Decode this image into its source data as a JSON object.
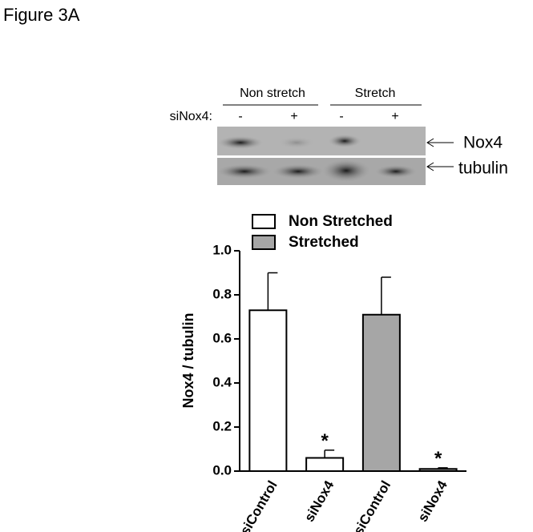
{
  "figure_label": "Figure 3A",
  "blot": {
    "groups": [
      "Non stretch",
      "Stretch"
    ],
    "row_label": "siNox4:",
    "lanes": [
      "-",
      "+",
      "-",
      "+"
    ],
    "bands": [
      "Nox4",
      "tubulin"
    ]
  },
  "chart_data": {
    "type": "bar",
    "categories": [
      "siControl",
      "siNox4",
      "siControl",
      "siNox4"
    ],
    "series": [
      {
        "name": "Non Stretched",
        "color": "#ffffff",
        "values": [
          0.73,
          0.06,
          null,
          null
        ],
        "errors": [
          0.17,
          0.035,
          null,
          null
        ],
        "annotations": [
          null,
          "*",
          null,
          null
        ]
      },
      {
        "name": "Stretched",
        "color": "#a6a6a6",
        "values": [
          null,
          null,
          0.71,
          0.01
        ],
        "errors": [
          null,
          null,
          0.17,
          0.005
        ],
        "annotations": [
          null,
          null,
          null,
          "*"
        ]
      }
    ],
    "ylabel": "Nox4 / tubulin",
    "ylim": [
      0,
      1.0
    ],
    "yticks": [
      {
        "value": 0,
        "label": "0.0"
      },
      0.2,
      0.4,
      0.6,
      0.8,
      {
        "value": 1.0,
        "label": "1.0"
      }
    ]
  }
}
